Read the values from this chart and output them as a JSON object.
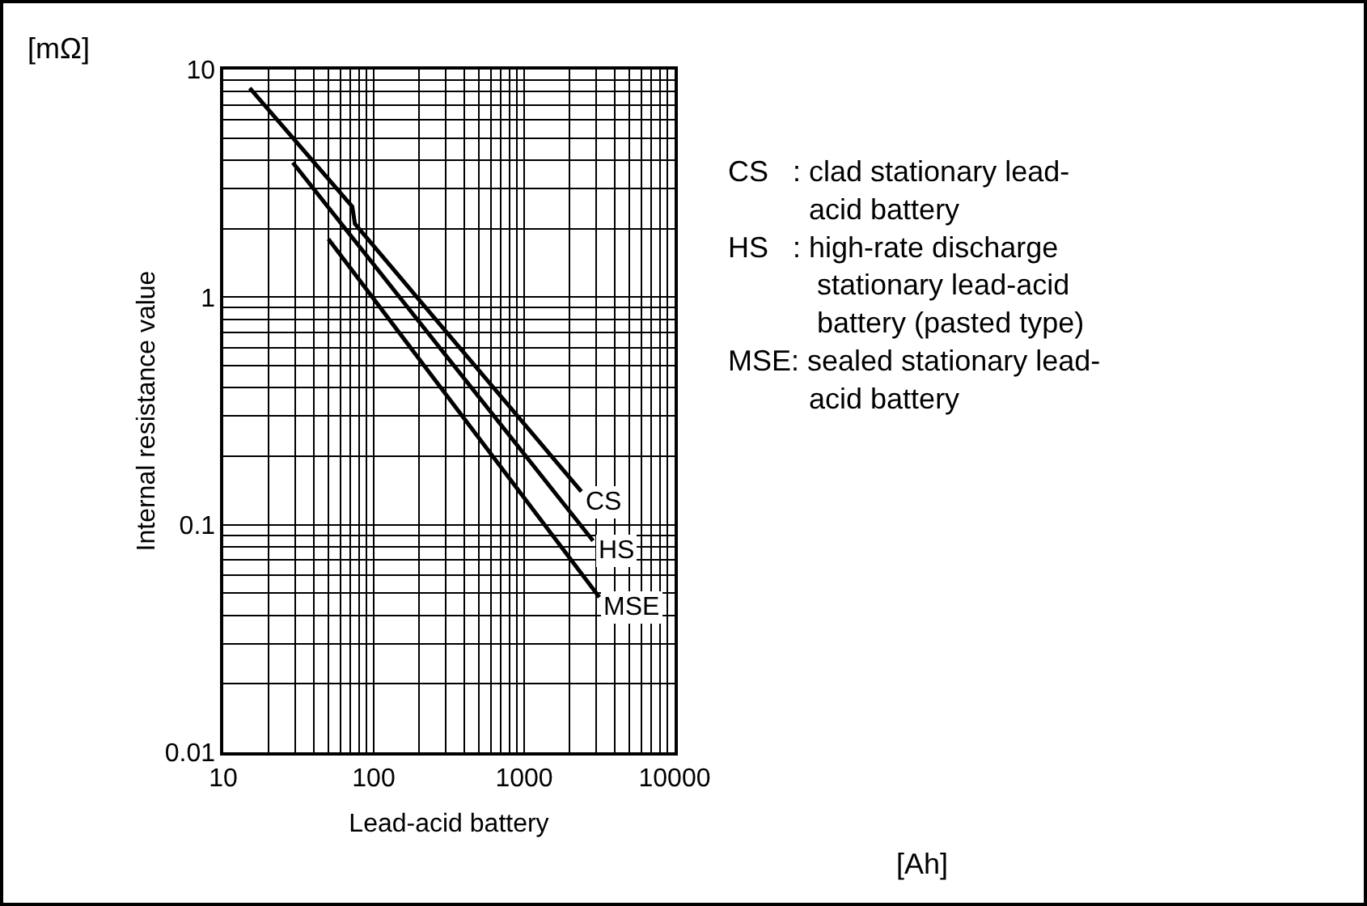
{
  "chart_data": {
    "type": "line",
    "xlabel": "Lead-acid battery",
    "ylabel": "Internal resistance value",
    "log": "xy",
    "grid": true,
    "legend": false,
    "marker": "none",
    "line_style": "solid",
    "xlim": [
      10,
      10000
    ],
    "xticks": [
      10,
      100,
      1000,
      10000
    ],
    "ylim": [
      0.01,
      10
    ],
    "yticks": [
      0.01,
      0.1,
      1,
      10
    ],
    "series": [
      {
        "name": "CS",
        "color": "#000000",
        "x": [
          15,
          72,
          75,
          2400
        ],
        "values": [
          8.3,
          2.5,
          2.1,
          0.14
        ]
      },
      {
        "name": "HS",
        "color": "#000000",
        "x": [
          29,
          2870
        ],
        "values": [
          3.9,
          0.085
        ]
      },
      {
        "name": "MSE",
        "color": "#000000",
        "x": [
          50,
          3160
        ],
        "values": [
          1.8,
          0.048
        ]
      }
    ],
    "annotations": [
      "[mΩ]",
      "[Ah]",
      "CS   : clad stationary lead-\n          acid battery\nHS   : high-rate discharge\n           stationary lead-acid\n           battery (pasted type)\nMSE: sealed stationary lead-\n          acid battery"
    ]
  }
}
